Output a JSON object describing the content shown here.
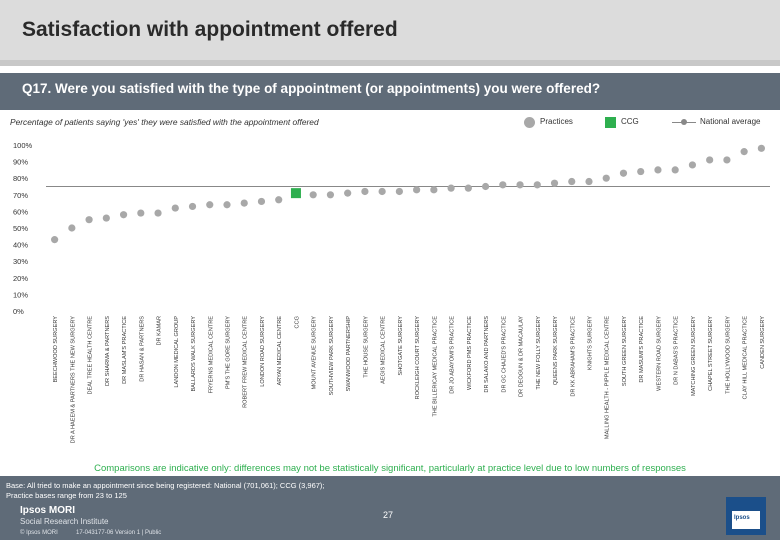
{
  "header": {
    "title": "Satisfaction with appointment offered",
    "question": "Q17. Were you satisfied with the type of appointment (or appointments) you were offered?",
    "subtitle": "Percentage of patients saying 'yes' they were satisfied with the appointment offered"
  },
  "legend": {
    "practices": "Practices",
    "ccg": "CCG",
    "national": "National average"
  },
  "colors": {
    "practice_dot": "#a8a8a8",
    "ccg_square": "#2eaf4f",
    "national_line": "#888888",
    "header": "#dcdcdc",
    "band": "#5f6b78"
  },
  "chart_data": {
    "type": "scatter",
    "ylim": [
      0,
      100
    ],
    "y_ticks": [
      "0%",
      "10%",
      "20%",
      "30%",
      "40%",
      "50%",
      "60%",
      "70%",
      "80%",
      "90%",
      "100%"
    ],
    "grid": false,
    "categories": [
      "BEECHWOOD SURGERY",
      "DR A HAEEM & PARTNERS THE NEW SURGERY",
      "DEAL TREE HEALTH CENTRE",
      "DR SHARMA & PARTNERS",
      "DR MASLAM'S PRACTICE",
      "DR HASAN & PARTNERS",
      "DR KAMAR",
      "LANDON MEDICAL GROUP",
      "BALLARDS WALK SURGERY",
      "FRYERNS MEDICAL CENTRE",
      "PM'S THE GORE SURGERY",
      "ROBERT FREW MEDICAL CENTRE",
      "LONDON ROAD SURGERY",
      "ARYAN MEDICAL CENTRE",
      "CCG",
      "MOUNT AVENUE SURGERY",
      "SOUTHVIEW PARK SURGERY",
      "SWANWOOD PARTNERSHIP",
      "THE HOUSE SURGERY",
      "AEGIS MEDICAL CENTRE",
      "SHOTGATE SURGERY",
      "ROCKLEIGH COURT SURGERY",
      "THE BILLERICAY MEDICAL PRACTICE",
      "DR JO ABAYOMI'S PRACTICE",
      "WICKFORD PMS PRACTICE",
      "DR SALAKO AND PARTNERS",
      "DR GC CHAJED'S PRACTICE",
      "DR DEOGUN & DR MACAULAY",
      "THE NEW FOLLY SURGERY",
      "QUEENS PARK SURGERY",
      "DR KK ABRAHAM'S PRACTICE",
      "KNIGHTS SURGERY",
      "MALLING HEALTH - PIPPLE MEDICAL CENTRE",
      "SOUTH GREEN SURGERY",
      "DR MASUMI'S PRACTICE",
      "WESTERN ROAD SURGERY",
      "DR N DABAS'S PRACTICE",
      "MATCHING GREEN SURGERY",
      "CHAPEL STREET SURGERY",
      "THE HOLLYWOOD SURGERY",
      "CLAY HILL MEDICAL PRACTICE",
      "CANDEN SURGERY"
    ],
    "series": [
      {
        "name": "Practices",
        "values": [
          43,
          50,
          55,
          56,
          58,
          59,
          59,
          62,
          63,
          64,
          64,
          65,
          66,
          67,
          null,
          70,
          70,
          71,
          72,
          72,
          72,
          73,
          73,
          74,
          74,
          75,
          76,
          76,
          76,
          77,
          78,
          78,
          80,
          83,
          84,
          85,
          85,
          88,
          91,
          91,
          96,
          98
        ]
      },
      {
        "name": "CCG",
        "values": [
          null,
          null,
          null,
          null,
          null,
          null,
          null,
          null,
          null,
          null,
          null,
          null,
          null,
          null,
          71,
          null,
          null,
          null,
          null,
          null,
          null,
          null,
          null,
          null,
          null,
          null,
          null,
          null,
          null,
          null,
          null,
          null,
          null,
          null,
          null,
          null,
          null,
          null,
          null,
          null,
          null,
          null
        ]
      },
      {
        "name": "National average",
        "value": 75
      }
    ]
  },
  "footer": {
    "note": "Comparisons are indicative only: differences may not be statistically significant, particularly at practice level due to low numbers of responses",
    "base_line1": "Base: All tried to make an appointment since being registered: National (701,061); CCG (3,967);",
    "base_line2": "Practice bases range from 23 to 125",
    "logo_line1": "Ipsos MORI",
    "logo_line2": "Social Research Institute",
    "copyright": "© Ipsos MORI",
    "version": "17-043177-06 Version 1 | Public",
    "page": "27",
    "brand": "Ipsos"
  }
}
